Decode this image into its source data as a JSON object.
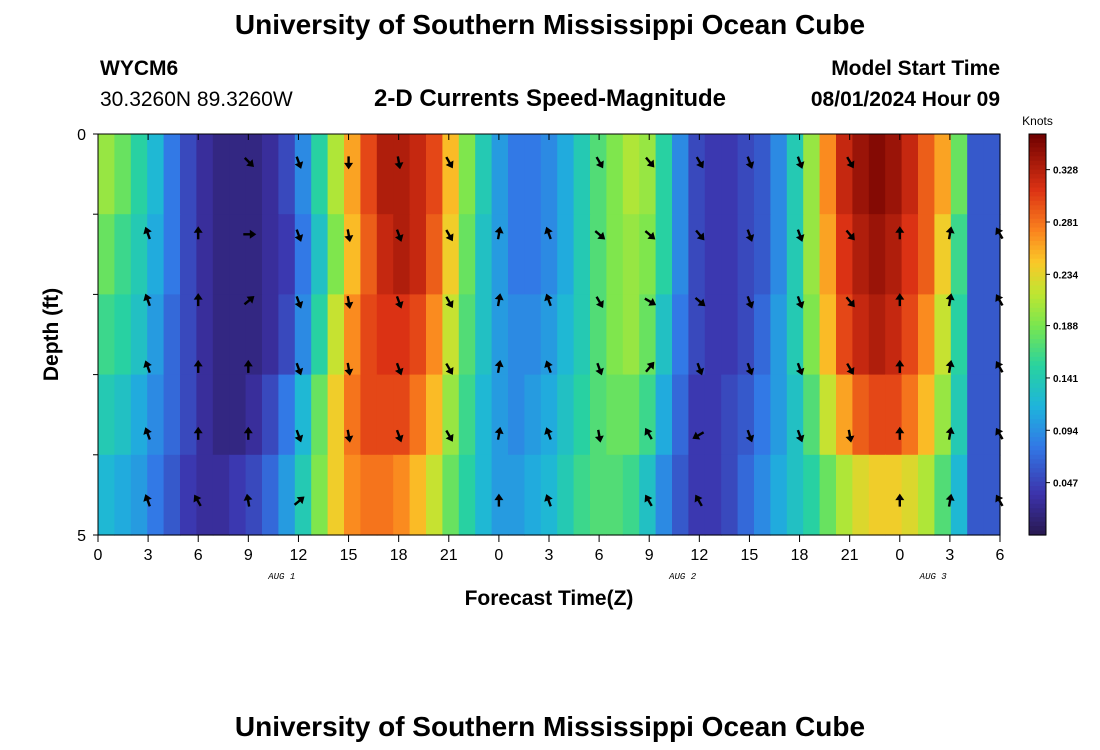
{
  "page": {
    "title": "University of Southern Mississippi Ocean Cube",
    "title_repeat": "University of Southern Mississippi Ocean Cube"
  },
  "station": {
    "id": "WYCM6",
    "coords": "30.3260N  89.3260W"
  },
  "model": {
    "start_label": "Model Start Time",
    "start_value": "08/01/2024 Hour 09"
  },
  "chart_data": {
    "type": "heatmap",
    "title": "2-D Currents Speed-Magnitude",
    "xlabel": "Forecast Time(Z)",
    "ylabel": "Depth (ft)",
    "x_tick_labels": [
      "0",
      "3",
      "6",
      "9",
      "12",
      "15",
      "18",
      "21",
      "0",
      "3",
      "6",
      "9",
      "12",
      "15",
      "18",
      "21",
      "0",
      "3",
      "6"
    ],
    "date_labels": [
      {
        "text": "AUG 1",
        "hour_index": 11
      },
      {
        "text": "AUG 2",
        "hour_index": 35
      },
      {
        "text": "AUG 3",
        "hour_index": 50
      }
    ],
    "y_tick_labels": [
      "0",
      "5"
    ],
    "ylim": [
      0,
      5
    ],
    "xlim_hours": [
      0,
      54
    ],
    "hour_step": 1,
    "depth_levels": 5,
    "colorbar": {
      "title": "Knots",
      "tick_labels": [
        "0.328",
        "0.281",
        "0.234",
        "0.188",
        "0.141",
        "0.094",
        "0.047"
      ],
      "tick_values": [
        0.328,
        0.281,
        0.234,
        0.188,
        0.141,
        0.094,
        0.047
      ],
      "range": [
        0,
        0.36
      ]
    },
    "speed_knots_rows": [
      [
        0.2,
        0.18,
        0.15,
        0.12,
        0.08,
        0.05,
        0.03,
        0.02,
        0.02,
        0.02,
        0.03,
        0.05,
        0.09,
        0.15,
        0.21,
        0.26,
        0.3,
        0.33,
        0.33,
        0.32,
        0.3,
        0.25,
        0.19,
        0.14,
        0.1,
        0.08,
        0.08,
        0.09,
        0.11,
        0.14,
        0.17,
        0.19,
        0.21,
        0.2,
        0.15,
        0.09,
        0.05,
        0.04,
        0.04,
        0.05,
        0.06,
        0.09,
        0.14,
        0.2,
        0.27,
        0.32,
        0.34,
        0.35,
        0.34,
        0.32,
        0.29,
        0.26,
        0.18,
        0.06,
        0.06
      ],
      [
        0.18,
        0.16,
        0.14,
        0.11,
        0.08,
        0.05,
        0.03,
        0.02,
        0.02,
        0.02,
        0.03,
        0.04,
        0.08,
        0.13,
        0.19,
        0.25,
        0.29,
        0.32,
        0.33,
        0.32,
        0.29,
        0.24,
        0.18,
        0.13,
        0.1,
        0.08,
        0.08,
        0.09,
        0.11,
        0.14,
        0.17,
        0.19,
        0.2,
        0.19,
        0.15,
        0.09,
        0.05,
        0.04,
        0.04,
        0.05,
        0.06,
        0.09,
        0.14,
        0.2,
        0.26,
        0.31,
        0.33,
        0.34,
        0.33,
        0.31,
        0.29,
        0.24,
        0.16,
        0.06,
        0.06
      ],
      [
        0.16,
        0.15,
        0.13,
        0.1,
        0.07,
        0.05,
        0.03,
        0.02,
        0.02,
        0.02,
        0.03,
        0.05,
        0.09,
        0.15,
        0.22,
        0.27,
        0.3,
        0.31,
        0.31,
        0.3,
        0.27,
        0.22,
        0.17,
        0.13,
        0.1,
        0.09,
        0.09,
        0.1,
        0.12,
        0.14,
        0.17,
        0.19,
        0.2,
        0.18,
        0.13,
        0.08,
        0.05,
        0.04,
        0.04,
        0.05,
        0.07,
        0.1,
        0.14,
        0.19,
        0.25,
        0.3,
        0.32,
        0.33,
        0.32,
        0.3,
        0.27,
        0.22,
        0.15,
        0.06,
        0.06
      ],
      [
        0.14,
        0.13,
        0.11,
        0.09,
        0.07,
        0.05,
        0.03,
        0.02,
        0.02,
        0.03,
        0.05,
        0.08,
        0.12,
        0.18,
        0.24,
        0.28,
        0.3,
        0.3,
        0.3,
        0.28,
        0.25,
        0.2,
        0.16,
        0.12,
        0.1,
        0.09,
        0.1,
        0.11,
        0.13,
        0.15,
        0.17,
        0.18,
        0.18,
        0.16,
        0.11,
        0.07,
        0.04,
        0.04,
        0.05,
        0.06,
        0.08,
        0.1,
        0.13,
        0.17,
        0.22,
        0.26,
        0.29,
        0.3,
        0.3,
        0.28,
        0.25,
        0.2,
        0.14,
        0.06,
        0.06
      ],
      [
        0.12,
        0.11,
        0.1,
        0.08,
        0.06,
        0.04,
        0.03,
        0.03,
        0.04,
        0.05,
        0.07,
        0.1,
        0.14,
        0.19,
        0.24,
        0.27,
        0.28,
        0.28,
        0.27,
        0.25,
        0.22,
        0.18,
        0.15,
        0.12,
        0.1,
        0.1,
        0.11,
        0.12,
        0.14,
        0.16,
        0.17,
        0.17,
        0.16,
        0.13,
        0.09,
        0.06,
        0.04,
        0.04,
        0.05,
        0.07,
        0.09,
        0.11,
        0.13,
        0.15,
        0.18,
        0.21,
        0.23,
        0.24,
        0.24,
        0.23,
        0.21,
        0.17,
        0.12,
        0.06,
        0.06
      ]
    ],
    "arrow_hours": [
      0,
      3,
      6,
      9,
      12,
      15,
      18,
      21,
      24,
      27,
      30,
      33,
      36,
      39,
      42,
      45,
      48,
      51,
      54
    ],
    "arrow_directions_deg": [
      [
        null,
        null,
        null,
        135,
        160,
        180,
        170,
        150,
        null,
        null,
        150,
        140,
        150,
        160,
        160,
        150,
        null,
        null,
        null
      ],
      [
        null,
        -20,
        0,
        90,
        160,
        170,
        160,
        150,
        10,
        -20,
        130,
        130,
        140,
        160,
        160,
        140,
        0,
        10,
        -30
      ],
      [
        null,
        -20,
        0,
        50,
        160,
        170,
        160,
        150,
        10,
        -20,
        150,
        120,
        130,
        160,
        160,
        140,
        0,
        10,
        -30
      ],
      [
        null,
        -20,
        0,
        0,
        160,
        170,
        160,
        150,
        10,
        -20,
        160,
        40,
        160,
        160,
        160,
        150,
        0,
        10,
        -30
      ],
      [
        null,
        -20,
        0,
        0,
        160,
        170,
        160,
        150,
        10,
        -20,
        170,
        -30,
        -120,
        160,
        160,
        170,
        0,
        10,
        -30
      ],
      [
        null,
        -20,
        -30,
        -10,
        50,
        null,
        null,
        null,
        0,
        -20,
        null,
        -30,
        -30,
        null,
        null,
        null,
        0,
        10,
        -30
      ]
    ]
  }
}
